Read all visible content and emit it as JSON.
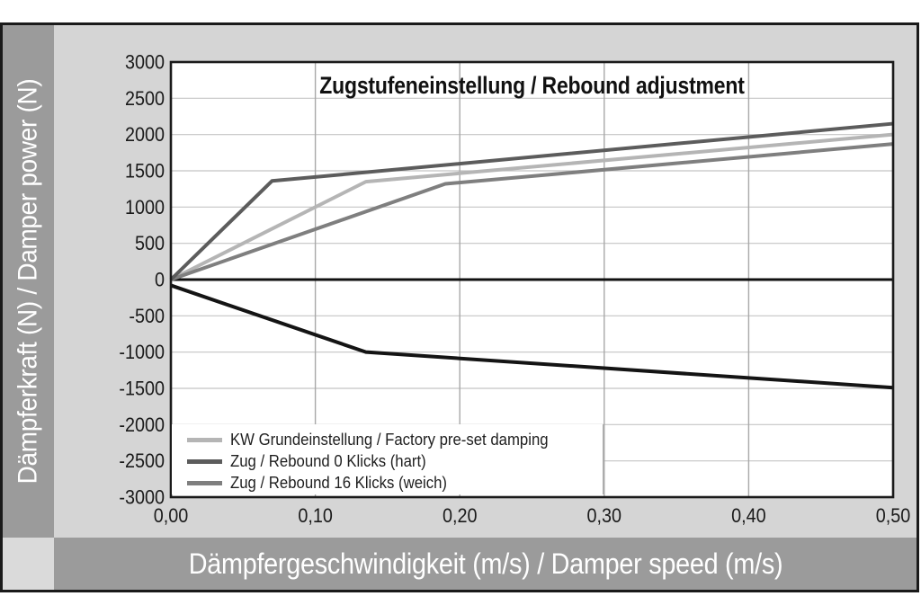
{
  "frame": {
    "background": "#d5d5d5",
    "border_color": "#1a1a1a",
    "band_color": "#9b9b9b",
    "corner_color": "#dadada",
    "band_text_color": "#ffffff"
  },
  "chart_data": {
    "type": "line",
    "title": "Zugstufeneinstellung / Rebound adjustment",
    "xlabel": "Dämpfergeschwindigkeit (m/s) / Damper speed (m/s)",
    "ylabel": "Dämpferkraft (N) / Damper power (N)",
    "xlim": [
      0,
      0.5
    ],
    "ylim": [
      -3000,
      3000
    ],
    "x_ticks": [
      0,
      0.1,
      0.2,
      0.3,
      0.4,
      0.5
    ],
    "x_tick_labels": [
      "0,00",
      "0,10",
      "0,20",
      "0,30",
      "0,40",
      "0,50"
    ],
    "y_ticks": [
      3000,
      2500,
      2000,
      1500,
      1000,
      500,
      0,
      -500,
      -1000,
      -1500,
      -2000,
      -2500,
      -3000
    ],
    "y_tick_labels": [
      "3000",
      "2500",
      "2000",
      "1500",
      "1000",
      "500",
      "0",
      "-500",
      "-1000",
      "-1500",
      "-2000",
      "-2500",
      "-3000"
    ],
    "grid": true,
    "zero_line": true,
    "legend_position": "inside-bottom-left",
    "colors": {
      "plot_background": "#ffffff",
      "h_gridline": "#c4c4c4",
      "v_gridline": "#a8a8a8",
      "zero_axis": "#111111",
      "plot_border": "#1a1a1a"
    },
    "series": [
      {
        "id": "factory-preset-curve",
        "name": "KW Grundeinstellung / Factory pre-set damping",
        "color": "#b5b5b5",
        "width": 4,
        "in_legend": true,
        "points": [
          [
            0,
            0
          ],
          [
            0.135,
            1350
          ],
          [
            0.5,
            2000
          ]
        ]
      },
      {
        "id": "rebound-0-clicks-curve",
        "name": "Zug / Rebound 0 Klicks (hart)",
        "color": "#5c5c5c",
        "width": 4,
        "in_legend": true,
        "points": [
          [
            0,
            0
          ],
          [
            0.07,
            1360
          ],
          [
            0.5,
            2150
          ]
        ]
      },
      {
        "id": "rebound-16-clicks-curve",
        "name": "Zug / Rebound 16 Klicks (weich)",
        "color": "#7f7f7f",
        "width": 4,
        "in_legend": true,
        "points": [
          [
            0,
            0
          ],
          [
            0.19,
            1320
          ],
          [
            0.5,
            1870
          ]
        ]
      },
      {
        "id": "compression-curve",
        "name": "",
        "color": "#141414",
        "width": 4,
        "in_legend": false,
        "points": [
          [
            0,
            -80
          ],
          [
            0.135,
            -1000
          ],
          [
            0.5,
            -1490
          ]
        ]
      }
    ]
  }
}
